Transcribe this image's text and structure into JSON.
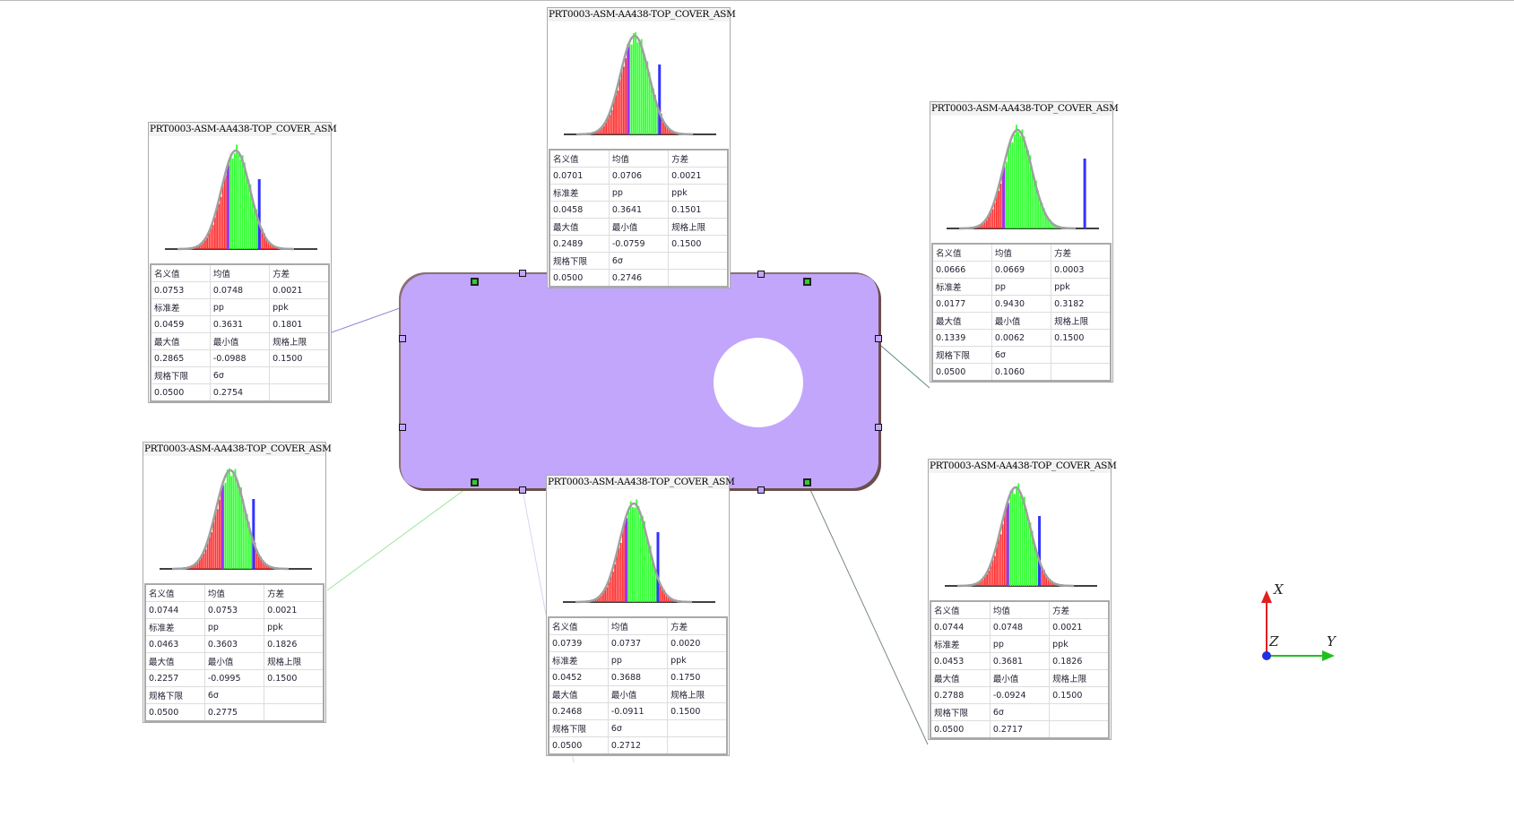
{
  "panel_title": "PRT0003-ASM-AA438-TOP_COVER_ASM",
  "labels": {
    "nominal": "名义值",
    "mean": "均值",
    "variance": "方差",
    "std": "标准差",
    "pp": "pp",
    "ppk": "ppk",
    "max": "最大值",
    "min": "最小值",
    "usl": "规格上限",
    "lsl": "规格下限",
    "six_sigma": "6σ"
  },
  "colors": {
    "in_spec": "#33ff33",
    "out_of_spec": "#ff3333",
    "lsl_marker": "#9933ff",
    "usl_marker": "#3333ff",
    "fit_curve": "#a0a0a0",
    "part": "#c1a6fb"
  },
  "panels": [
    {
      "id": "top-left",
      "nominal": "0.0753",
      "mean": "0.0748",
      "variance": "0.0021",
      "std": "0.0459",
      "pp": "0.3631",
      "ppk": "0.1801",
      "max": "0.2865",
      "min": "-0.0988",
      "usl": "0.1500",
      "lsl": "0.0500",
      "six_sigma": "0.2754"
    },
    {
      "id": "top-center",
      "nominal": "0.0701",
      "mean": "0.0706",
      "variance": "0.0021",
      "std": "0.0458",
      "pp": "0.3641",
      "ppk": "0.1501",
      "max": "0.2489",
      "min": "-0.0759",
      "usl": "0.1500",
      "lsl": "0.0500",
      "six_sigma": "0.2746"
    },
    {
      "id": "top-right",
      "nominal": "0.0666",
      "mean": "0.0669",
      "variance": "0.0003",
      "std": "0.0177",
      "pp": "0.9430",
      "ppk": "0.3182",
      "max": "0.1339",
      "min": "0.0062",
      "usl": "0.1500",
      "lsl": "0.0500",
      "six_sigma": "0.1060"
    },
    {
      "id": "bottom-left",
      "nominal": "0.0744",
      "mean": "0.0753",
      "variance": "0.0021",
      "std": "0.0463",
      "pp": "0.3603",
      "ppk": "0.1826",
      "max": "0.2257",
      "min": "-0.0995",
      "usl": "0.1500",
      "lsl": "0.0500",
      "six_sigma": "0.2775"
    },
    {
      "id": "bottom-center",
      "nominal": "0.0739",
      "mean": "0.0737",
      "variance": "0.0020",
      "std": "0.0452",
      "pp": "0.3688",
      "ppk": "0.1750",
      "max": "0.2468",
      "min": "-0.0911",
      "usl": "0.1500",
      "lsl": "0.0500",
      "six_sigma": "0.2712"
    },
    {
      "id": "bottom-right",
      "nominal": "0.0744",
      "mean": "0.0748",
      "variance": "0.0021",
      "std": "0.0453",
      "pp": "0.3681",
      "ppk": "0.1826",
      "max": "0.2788",
      "min": "-0.0924",
      "usl": "0.1500",
      "lsl": "0.0500",
      "six_sigma": "0.2717"
    }
  ],
  "triad": {
    "x": "X",
    "y": "Y",
    "z": "Z"
  }
}
